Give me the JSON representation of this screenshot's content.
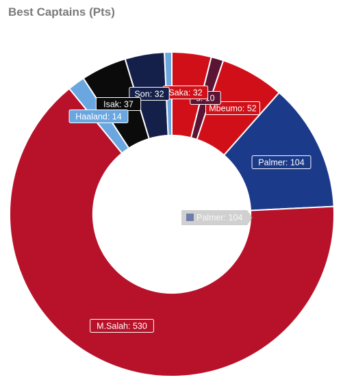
{
  "title": "Best Captains (Pts)",
  "chart_data": {
    "type": "doughnut",
    "title": "Best Captains (Pts)",
    "series": [
      {
        "name": "M.Salah",
        "value": 530,
        "color": "#b8122a"
      },
      {
        "name": "Palmer",
        "value": 104,
        "color": "#1b3a8a"
      },
      {
        "name": "Mbeumo",
        "value": 52,
        "color": "#d10f18"
      },
      {
        "name": "Rogers",
        "value": 10,
        "color": "#5c1434"
      },
      {
        "name": "Saka",
        "value": 32,
        "color": "#d10f18"
      },
      {
        "name": "",
        "value": 6,
        "color": "#6aa6e0"
      },
      {
        "name": "Son",
        "value": 32,
        "color": "#142049"
      },
      {
        "name": "Isak",
        "value": 37,
        "color": "#0b0b0b"
      },
      {
        "name": "Haaland",
        "value": 14,
        "color": "#6aa6e0"
      }
    ],
    "labels": [
      {
        "text": "M.Salah: 530",
        "slice": 0
      },
      {
        "text": "Palmer: 104",
        "slice": 1
      },
      {
        "text": "Mbeumo: 52",
        "slice": 2
      },
      {
        "text": "s: 10",
        "slice": 3
      },
      {
        "text": "Saka: 32",
        "slice": 4
      },
      {
        "text": "Son: 32",
        "slice": 6
      },
      {
        "text": "Isak: 37",
        "slice": 7
      },
      {
        "text": "Haaland: 14",
        "slice": 8
      }
    ],
    "tooltip": {
      "text": "Palmer: 104",
      "color": "#1b3a8a"
    },
    "hole_ratio": 0.49
  }
}
